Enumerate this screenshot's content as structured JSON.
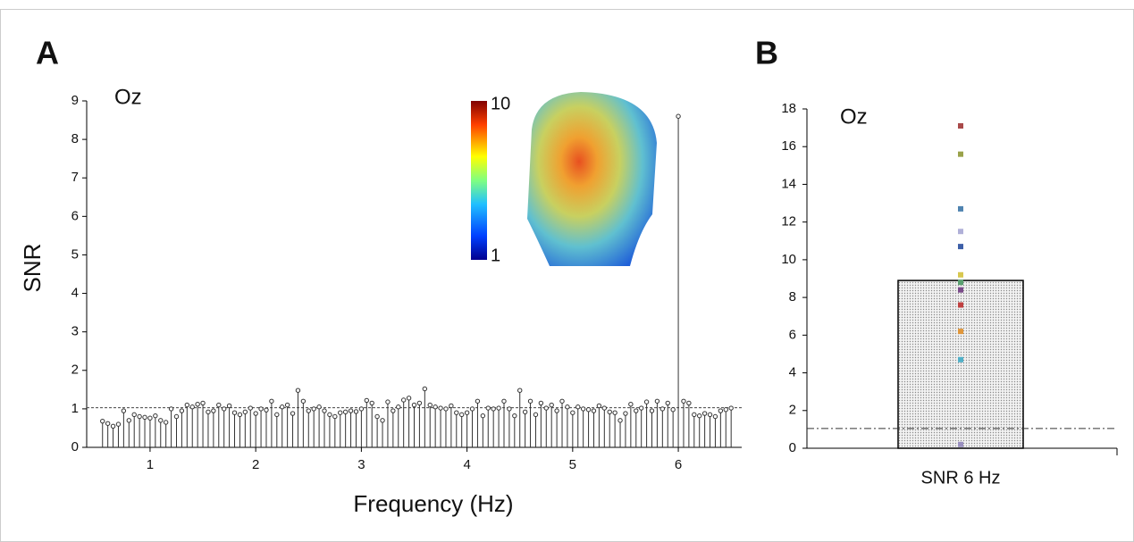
{
  "chart_data": [
    {
      "type": "stem",
      "panel": "A",
      "annotation": "Oz",
      "y_label": "SNR",
      "x_label": "Frequency (Hz)",
      "x": [
        0.55,
        0.6,
        0.65,
        0.7,
        0.75,
        0.8,
        0.85,
        0.9,
        0.95,
        1.0,
        1.05,
        1.1,
        1.15,
        1.2,
        1.25,
        1.3,
        1.35,
        1.4,
        1.45,
        1.5,
        1.55,
        1.6,
        1.65,
        1.7,
        1.75,
        1.8,
        1.85,
        1.9,
        1.95,
        2.0,
        2.05,
        2.1,
        2.15,
        2.2,
        2.25,
        2.3,
        2.35,
        2.4,
        2.45,
        2.5,
        2.55,
        2.6,
        2.65,
        2.7,
        2.75,
        2.8,
        2.85,
        2.9,
        2.95,
        3.0,
        3.05,
        3.1,
        3.15,
        3.2,
        3.25,
        3.3,
        3.35,
        3.4,
        3.45,
        3.5,
        3.55,
        3.6,
        3.65,
        3.7,
        3.75,
        3.8,
        3.85,
        3.9,
        3.95,
        4.0,
        4.05,
        4.1,
        4.15,
        4.2,
        4.25,
        4.3,
        4.35,
        4.4,
        4.45,
        4.5,
        4.55,
        4.6,
        4.65,
        4.7,
        4.75,
        4.8,
        4.85,
        4.9,
        4.95,
        5.0,
        5.05,
        5.1,
        5.15,
        5.2,
        5.25,
        5.3,
        5.35,
        5.4,
        5.45,
        5.5,
        5.55,
        5.6,
        5.65,
        5.7,
        5.75,
        5.8,
        5.85,
        5.9,
        5.95,
        6.0,
        6.05,
        6.1,
        6.15,
        6.2,
        6.25,
        6.3,
        6.35,
        6.4,
        6.45,
        6.5
      ],
      "values": [
        0.68,
        0.62,
        0.55,
        0.6,
        0.95,
        0.7,
        0.85,
        0.8,
        0.78,
        0.76,
        0.82,
        0.7,
        0.65,
        1.0,
        0.8,
        0.95,
        1.1,
        1.05,
        1.12,
        1.15,
        0.92,
        0.95,
        1.1,
        1.0,
        1.08,
        0.9,
        0.85,
        0.92,
        1.02,
        0.88,
        1.0,
        0.97,
        1.2,
        0.85,
        1.05,
        1.1,
        0.88,
        1.48,
        1.2,
        0.95,
        1.0,
        1.05,
        0.95,
        0.85,
        0.8,
        0.9,
        0.92,
        0.95,
        0.93,
        1.0,
        1.22,
        1.15,
        0.8,
        0.7,
        1.18,
        0.95,
        1.05,
        1.23,
        1.28,
        1.1,
        1.15,
        1.52,
        1.1,
        1.05,
        1.02,
        1.0,
        1.08,
        0.9,
        0.85,
        0.9,
        1.0,
        1.2,
        0.82,
        1.02,
        1.0,
        1.02,
        1.2,
        1.0,
        0.82,
        1.48,
        0.92,
        1.2,
        0.85,
        1.15,
        1.02,
        1.1,
        0.95,
        1.2,
        1.05,
        0.9,
        1.05,
        1.0,
        0.98,
        0.95,
        1.08,
        1.02,
        0.92,
        0.9,
        0.7,
        0.88,
        1.12,
        0.95,
        1.02,
        1.18,
        0.95,
        1.2,
        1.0,
        1.15,
        0.98,
        8.6,
        1.2,
        1.15,
        0.85,
        0.82,
        0.88,
        0.85,
        0.8,
        0.95,
        0.98,
        1.02
      ],
      "color": "#333333",
      "reference_line": 1.03,
      "xlim": [
        0.4,
        6.6
      ],
      "xticks": [
        1,
        2,
        3,
        4,
        5,
        6
      ],
      "ylim": [
        0,
        9
      ],
      "yticks": [
        0,
        1,
        2,
        3,
        4,
        5,
        6,
        7,
        8,
        9
      ],
      "colorbar": {
        "ticks": [
          1,
          10
        ]
      }
    },
    {
      "type": "bar",
      "panel": "B",
      "annotation": "Oz",
      "categories": [
        "SNR 6 Hz"
      ],
      "values": [
        8.9
      ],
      "color": "#8a8a8a",
      "reference_line": 1.05,
      "subject_values": [
        17.1,
        15.6,
        12.7,
        11.5,
        10.7,
        9.2,
        8.8,
        8.4,
        7.6,
        6.2,
        4.7,
        0.2
      ],
      "subject_colors": [
        "#a94a4a",
        "#9aa24a",
        "#4f83b0",
        "#b0b0d8",
        "#3d5fa8",
        "#d8c850",
        "#5aa070",
        "#7a4a8a",
        "#c04040",
        "#e0963a",
        "#50b0c8",
        "#9a90c0"
      ],
      "ylim": [
        0,
        18
      ],
      "yticks": [
        0,
        2,
        4,
        6,
        8,
        10,
        12,
        14,
        16,
        18
      ]
    }
  ]
}
